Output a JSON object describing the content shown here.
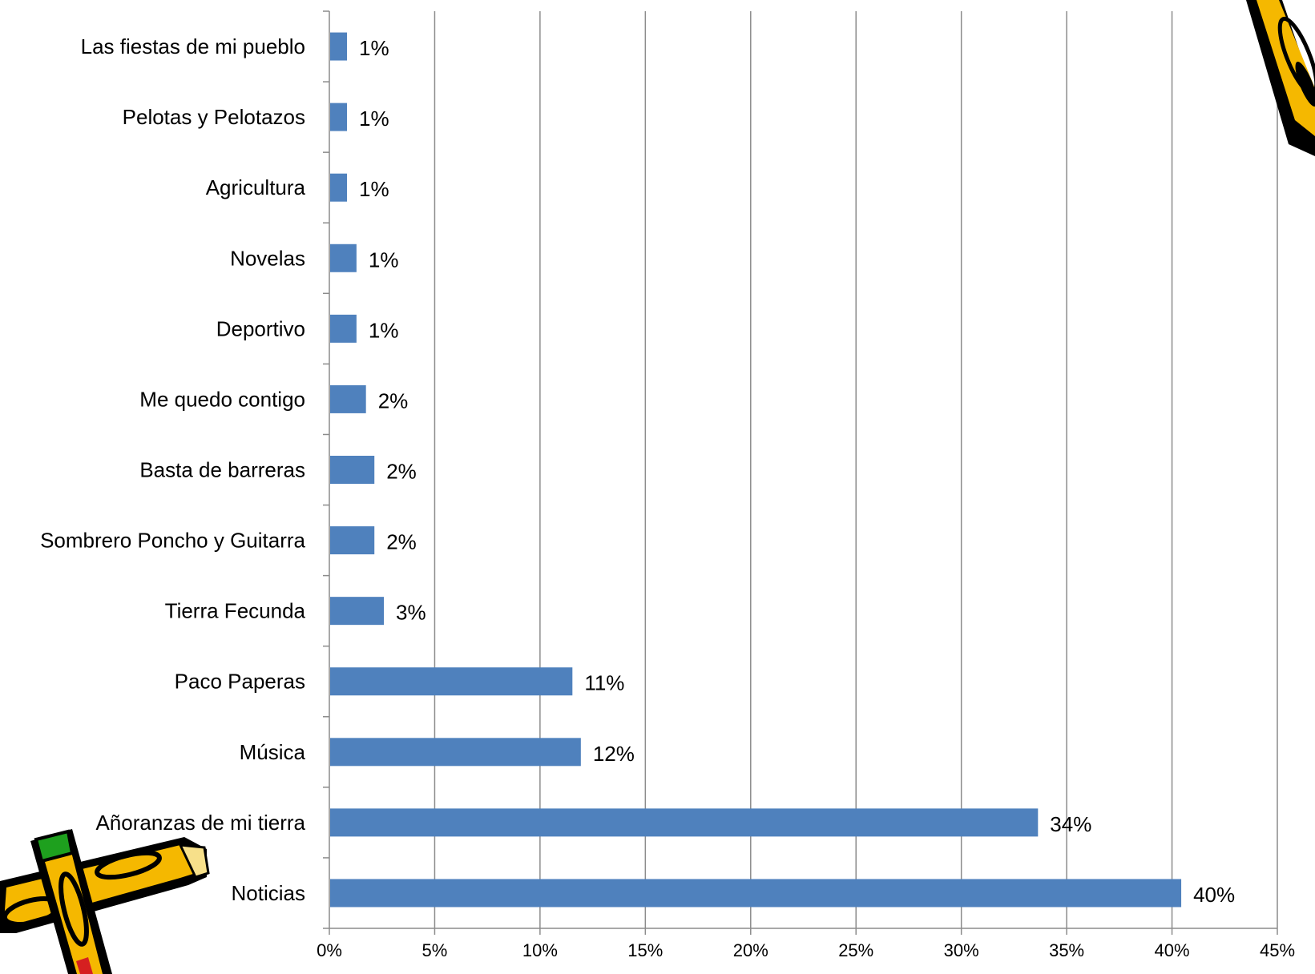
{
  "chart_data": {
    "type": "bar",
    "orientation": "horizontal",
    "categories": [
      "Las fiestas de mi pueblo",
      "Pelotas y Pelotazos",
      "Agricultura",
      "Novelas",
      "Deportivo",
      "Me quedo contigo",
      "Basta de barreras",
      "Sombrero Poncho y Guitarra",
      "Tierra Fecunda",
      "Paco Paperas",
      "Música",
      "Añoranzas de mi tierra",
      "Noticias"
    ],
    "values": [
      0.8,
      0.8,
      0.8,
      1.25,
      1.25,
      1.7,
      2.1,
      2.1,
      2.55,
      11.5,
      11.9,
      33.6,
      40.4
    ],
    "data_labels": [
      "1%",
      "1%",
      "1%",
      "1%",
      "1%",
      "2%",
      "2%",
      "2%",
      "3%",
      "11%",
      "12%",
      "34%",
      "40%"
    ],
    "x_ticks": [
      "0%",
      "5%",
      "10%",
      "15%",
      "20%",
      "25%",
      "30%",
      "35%",
      "40%",
      "45%"
    ],
    "xlim": [
      0,
      45
    ],
    "grid": "vertical",
    "bar_color": "#4F81BD",
    "title": "",
    "xlabel": "",
    "ylabel": ""
  },
  "decorations": {
    "top_right": "pencil-clipart-icon",
    "bottom_left": "crossed-pencils-clipart-icon"
  }
}
